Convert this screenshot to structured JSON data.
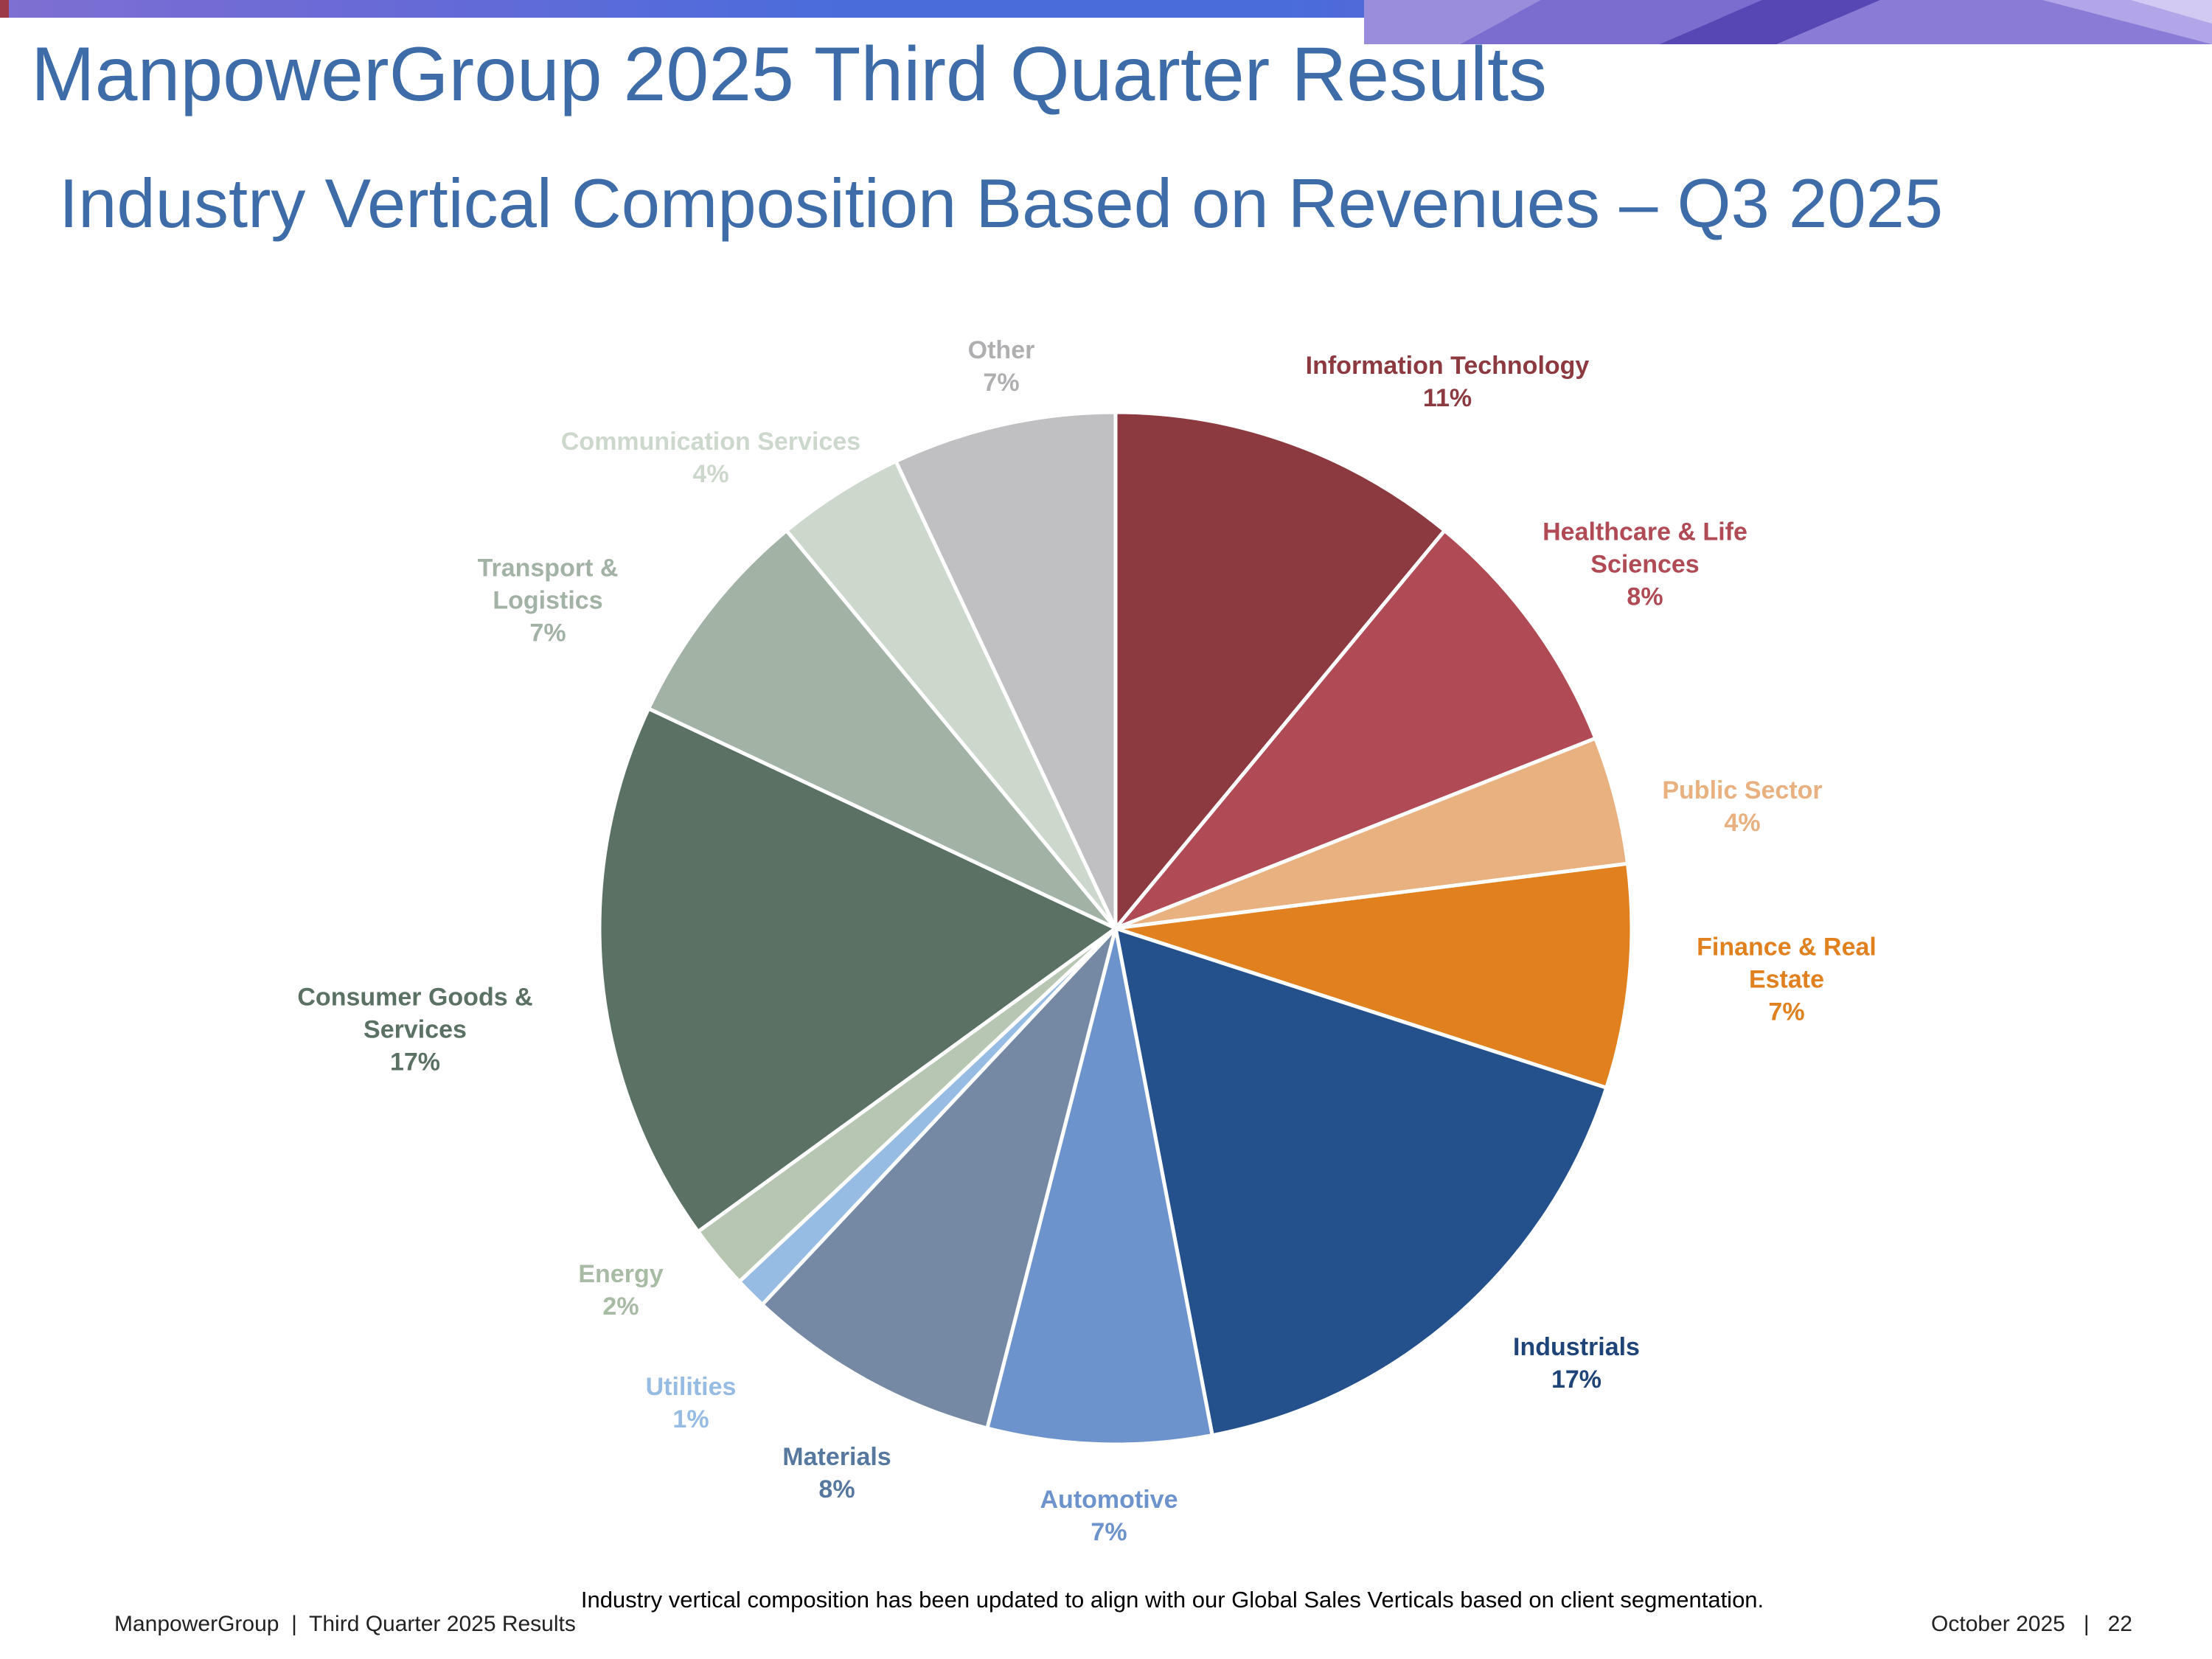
{
  "header": {
    "title": "ManpowerGroup 2025 Third Quarter Results",
    "subtitle": "Industry Vertical Composition Based on Revenues – Q3 2025"
  },
  "colors": {
    "title_text": "#3E6CA8",
    "accent_bar_left": "#7E6FD2",
    "accent_bar_right": "#4A6CDB"
  },
  "chart_data": {
    "type": "pie",
    "title": "Industry Vertical Composition Based on Revenues – Q3 2025",
    "start_angle_deg": -90,
    "direction": "clockwise",
    "legend_position": "outside-labels",
    "segments": [
      {
        "label": "Information Technology",
        "value": 11,
        "color": "#8C3A40",
        "label_color": "#8C3A40"
      },
      {
        "label": "Healthcare & Life Sciences",
        "value": 8,
        "color": "#B04A55",
        "label_color": "#B04A55"
      },
      {
        "label": "Public Sector",
        "value": 4,
        "color": "#EAB180",
        "label_color": "#EAB180"
      },
      {
        "label": "Finance & Real Estate",
        "value": 7,
        "color": "#E0801F",
        "label_color": "#E0801F"
      },
      {
        "label": "Industrials",
        "value": 17,
        "color": "#24508C",
        "label_color": "#1F4478"
      },
      {
        "label": "Automotive",
        "value": 7,
        "color": "#6D93CC",
        "label_color": "#6D93CC"
      },
      {
        "label": "Materials",
        "value": 8,
        "color": "#7589A4",
        "label_color": "#56789F"
      },
      {
        "label": "Utilities",
        "value": 1,
        "color": "#97BCE4",
        "label_color": "#97BCE4"
      },
      {
        "label": "Energy",
        "value": 2,
        "color": "#B7C6B2",
        "label_color": "#A8BBA4"
      },
      {
        "label": "Consumer Goods & Services",
        "value": 17,
        "color": "#5A7164",
        "label_color": "#5A7164"
      },
      {
        "label": "Transport & Logistics",
        "value": 7,
        "color": "#A2B2A4",
        "label_color": "#A2B2A4"
      },
      {
        "label": "Communication Services",
        "value": 4,
        "color": "#CCD8CB",
        "label_color": "#CCD8CB"
      },
      {
        "label": "Other",
        "value": 7,
        "color": "#C0C0C3",
        "label_color": "#AFAFB2"
      }
    ]
  },
  "footer": {
    "note": "Industry vertical composition has been updated to align with our Global Sales Verticals based on client segmentation.",
    "left": "ManpowerGroup  |  Third Quarter 2025 Results",
    "right": "October 2025   |   22"
  }
}
